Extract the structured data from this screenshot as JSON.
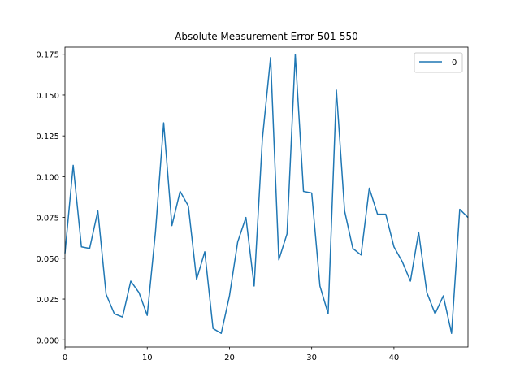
{
  "chart_data": {
    "type": "line",
    "title": "Absolute Measurement Error 501-550",
    "xlabel": "",
    "ylabel": "",
    "xlim": [
      0,
      49
    ],
    "ylim": [
      -0.00435,
      0.17935
    ],
    "xticks": [
      0,
      10,
      20,
      30,
      40
    ],
    "xtick_labels": [
      "0",
      "10",
      "20",
      "30",
      "40"
    ],
    "yticks": [
      0.0,
      0.025,
      0.05,
      0.075,
      0.1,
      0.125,
      0.15,
      0.175
    ],
    "ytick_labels": [
      "0.000",
      "0.025",
      "0.050",
      "0.075",
      "0.100",
      "0.125",
      "0.150",
      "0.175"
    ],
    "grid": false,
    "legend_position": "top-right",
    "series": [
      {
        "name": "0",
        "color": "#1f77b4",
        "x": [
          0,
          1,
          2,
          3,
          4,
          5,
          6,
          7,
          8,
          9,
          10,
          11,
          12,
          13,
          14,
          15,
          16,
          17,
          18,
          19,
          20,
          21,
          22,
          23,
          24,
          25,
          26,
          27,
          28,
          29,
          30,
          31,
          32,
          33,
          34,
          35,
          36,
          37,
          38,
          39,
          40,
          41,
          42,
          43,
          44,
          45,
          46,
          47,
          48,
          49
        ],
        "values": [
          0.053,
          0.107,
          0.057,
          0.056,
          0.079,
          0.028,
          0.016,
          0.014,
          0.036,
          0.029,
          0.015,
          0.066,
          0.133,
          0.07,
          0.091,
          0.082,
          0.037,
          0.054,
          0.007,
          0.004,
          0.027,
          0.06,
          0.075,
          0.033,
          0.123,
          0.173,
          0.049,
          0.065,
          0.175,
          0.091,
          0.09,
          0.033,
          0.016,
          0.153,
          0.079,
          0.056,
          0.052,
          0.093,
          0.077,
          0.077,
          0.057,
          0.048,
          0.036,
          0.066,
          0.029,
          0.016,
          0.027,
          0.004,
          0.08,
          0.075
        ]
      }
    ]
  }
}
